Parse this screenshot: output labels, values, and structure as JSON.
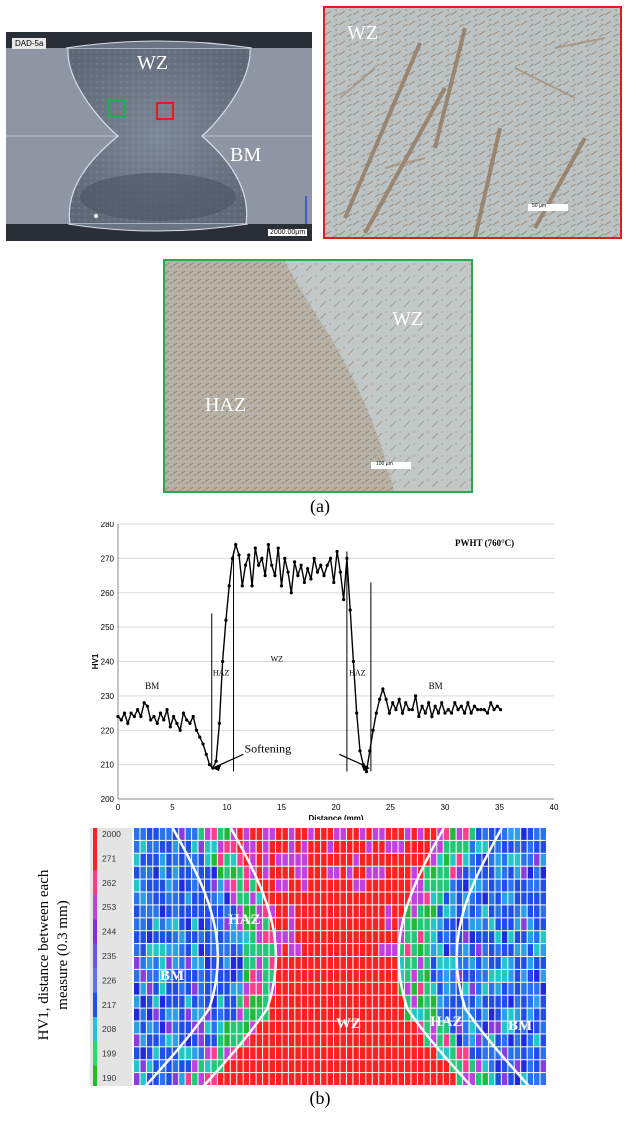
{
  "panel_a": {
    "caption": "(a)",
    "macro": {
      "sample_tag": "DAD-5a",
      "label_wz": "WZ",
      "label_bm": "BM",
      "scale_bar": "2000.00µm"
    },
    "micro_red": {
      "label_wz": "WZ",
      "scale_bar": "50 µm"
    },
    "micro_green": {
      "label_wz": "WZ",
      "label_haz": "HAZ",
      "scale_bar": "100 µm"
    }
  },
  "panel_b": {
    "caption": "(b)",
    "heatmap": {
      "ylabel_line1": "HV1, distance between each",
      "ylabel_line2": "measure (0.3 mm)",
      "legend_values": [
        "2000",
        "271",
        "262",
        "253",
        "244",
        "235",
        "226",
        "217",
        "208",
        "199",
        "190"
      ],
      "legend_colors": [
        "#ff2020",
        "#ff2020",
        "#ff3d8a",
        "#c040e0",
        "#8030e0",
        "#7050e8",
        "#6070f0",
        "#2050f0",
        "#20c0e0",
        "#20e060",
        "#20c020"
      ],
      "zone_labels": {
        "bm_left": "BM",
        "haz_left": "HAZ",
        "wz": "WZ",
        "haz_right": "HAZ",
        "bm_right": "BM"
      }
    }
  },
  "chart_data": {
    "type": "line",
    "title": "PWHT (760°C)",
    "xlabel": "Distance (mm)",
    "ylabel": "HV1",
    "xlim": [
      0,
      40
    ],
    "ylim": [
      200,
      280
    ],
    "xticks": [
      0,
      5,
      10,
      15,
      20,
      25,
      30,
      35,
      40
    ],
    "yticks": [
      200,
      210,
      220,
      230,
      240,
      250,
      260,
      270,
      280
    ],
    "grid": true,
    "annotations": {
      "bm_left": "BM",
      "haz_left": "HAZ",
      "wz": "WZ",
      "haz_right": "HAZ",
      "bm_right": "BM",
      "softening": "Softening"
    },
    "series": [
      {
        "x": [
          0,
          0.3,
          0.6,
          0.9,
          1.2,
          1.5,
          1.8,
          2.1,
          2.4,
          2.7,
          3.0,
          3.3,
          3.6,
          3.9,
          4.2,
          4.5,
          4.8,
          5.1,
          5.4,
          5.7,
          6.0,
          6.3,
          6.6,
          6.9,
          7.2,
          7.5,
          7.8,
          8.1,
          8.4,
          8.7,
          9.0,
          9.3,
          9.6,
          9.9,
          10.2,
          10.5,
          10.8,
          11.1,
          11.4,
          11.7,
          12.0,
          12.3,
          12.6,
          12.9,
          13.2,
          13.5,
          13.8,
          14.1,
          14.4,
          14.7,
          15.0,
          15.3,
          15.6,
          15.9,
          16.2,
          16.5,
          16.8,
          17.1,
          17.4,
          17.7,
          18.0,
          18.3,
          18.6,
          18.9,
          19.2,
          19.5,
          19.8,
          20.1,
          20.4,
          20.7,
          21.0,
          21.3,
          21.6,
          21.9,
          22.2,
          22.5,
          22.8,
          23.1,
          23.4,
          23.7,
          24.0,
          24.3,
          24.6,
          24.9,
          25.2,
          25.5,
          25.8,
          26.1,
          26.4,
          26.7,
          27.0,
          27.3,
          27.6,
          27.9,
          28.2,
          28.5,
          28.8,
          29.1,
          29.4,
          29.7,
          30.0,
          30.3,
          30.6,
          30.9,
          31.2,
          31.5,
          31.8,
          32.1,
          32.4,
          32.7,
          33.0,
          33.3,
          33.6,
          33.9,
          34.2,
          34.5,
          34.8,
          35.1
        ],
        "y": [
          224,
          223,
          225,
          222,
          225,
          224,
          226,
          224,
          228,
          227,
          223,
          224,
          222,
          225,
          223,
          226,
          221,
          224,
          222,
          220,
          225,
          223,
          222,
          224,
          220,
          218,
          216,
          213,
          210,
          209,
          211,
          222,
          240,
          252,
          262,
          270,
          274,
          271,
          262,
          268,
          271,
          262,
          273,
          268,
          270,
          265,
          274,
          268,
          265,
          273,
          262,
          270,
          266,
          260,
          269,
          265,
          268,
          263,
          267,
          264,
          270,
          266,
          268,
          265,
          268,
          270,
          263,
          272,
          266,
          258,
          270,
          255,
          240,
          225,
          214,
          210,
          208,
          214,
          220,
          225,
          229,
          232,
          229,
          225,
          228,
          226,
          229,
          225,
          228,
          226,
          226,
          230,
          224,
          227,
          225,
          228,
          224,
          227,
          225,
          228,
          225,
          226,
          225,
          228,
          226,
          227,
          225,
          228,
          225,
          227,
          226,
          226,
          226,
          225,
          228,
          226,
          227,
          226
        ]
      }
    ]
  }
}
